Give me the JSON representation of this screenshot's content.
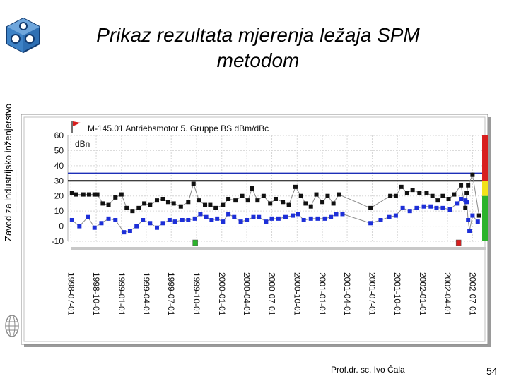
{
  "slide": {
    "title_line1": "Prikaz rezultata mjerenja ležaja SPM",
    "title_line2": "metodom",
    "side_text": "Zavod za industrijsko inženjerstvo",
    "author": "Prof.dr. sc. Ivo Čala",
    "page_number": "54"
  },
  "chart_data": {
    "type": "line",
    "title": "M-145.01 Antriebsmotor 5. Gruppe BS dBm/dBc",
    "ylabel": "dBn",
    "ylim": [
      -10,
      60
    ],
    "yticks": [
      -10,
      0,
      10,
      20,
      30,
      40,
      50,
      60
    ],
    "grid": true,
    "x_tick_labels": [
      "1998-07-01",
      "1998-10-01",
      "1999-01-01",
      "1999-04-01",
      "1999-07-01",
      "1999-10-01",
      "2000-01-01",
      "2000-04-01",
      "2000-07-01",
      "2000-10-01",
      "2001-01-01",
      "2001-04-01",
      "2001-07-01",
      "2001-10-01",
      "2002-01-01",
      "2002-04-01",
      "2002-07-01"
    ],
    "reference_lines": [
      {
        "value": 35,
        "color": "#1d2fb8"
      },
      {
        "value": 30,
        "color": "#000000"
      }
    ],
    "status_bands": [
      {
        "from": 30,
        "to": 60,
        "color": "#d81e1e"
      },
      {
        "from": 20,
        "to": 30,
        "color": "#f2e21a"
      },
      {
        "from": -10,
        "to": 20,
        "color": "#2bb32b"
      }
    ],
    "series": [
      {
        "color": "#111111",
        "points": [
          [
            "1998-07-05",
            22
          ],
          [
            "1998-07-20",
            21
          ],
          [
            "1998-08-15",
            21
          ],
          [
            "1998-09-05",
            21
          ],
          [
            "1998-09-25",
            21
          ],
          [
            "1998-10-05",
            21
          ],
          [
            "1998-10-25",
            15
          ],
          [
            "1998-11-15",
            14
          ],
          [
            "1998-12-10",
            19
          ],
          [
            "1999-01-01",
            21
          ],
          [
            "1999-01-20",
            12
          ],
          [
            "1999-02-10",
            10
          ],
          [
            "1999-03-05",
            12
          ],
          [
            "1999-03-25",
            15
          ],
          [
            "1999-04-15",
            14
          ],
          [
            "1999-05-10",
            17
          ],
          [
            "1999-06-01",
            18
          ],
          [
            "1999-06-20",
            16
          ],
          [
            "1999-07-10",
            15
          ],
          [
            "1999-08-05",
            13
          ],
          [
            "1999-09-01",
            16
          ],
          [
            "1999-09-20",
            28
          ],
          [
            "1999-10-10",
            17
          ],
          [
            "1999-11-01",
            14
          ],
          [
            "1999-11-20",
            14
          ],
          [
            "1999-12-10",
            12
          ],
          [
            "2000-01-05",
            14
          ],
          [
            "2000-01-25",
            18
          ],
          [
            "2000-02-20",
            17
          ],
          [
            "2000-03-15",
            20
          ],
          [
            "2000-04-05",
            17
          ],
          [
            "2000-04-20",
            25
          ],
          [
            "2000-05-10",
            17
          ],
          [
            "2000-06-01",
            20
          ],
          [
            "2000-06-25",
            15
          ],
          [
            "2000-07-15",
            18
          ],
          [
            "2000-08-10",
            16
          ],
          [
            "2000-09-01",
            14
          ],
          [
            "2000-09-25",
            26
          ],
          [
            "2000-10-15",
            20
          ],
          [
            "2000-11-01",
            15
          ],
          [
            "2000-11-20",
            13
          ],
          [
            "2000-12-10",
            21
          ],
          [
            "2001-01-01",
            16
          ],
          [
            "2001-01-20",
            20
          ],
          [
            "2001-02-10",
            15
          ],
          [
            "2001-03-01",
            21
          ],
          [
            "2001-06-25",
            12
          ],
          [
            "2001-09-05",
            20
          ],
          [
            "2001-09-25",
            20
          ],
          [
            "2001-10-15",
            26
          ],
          [
            "2001-11-05",
            22
          ],
          [
            "2001-11-25",
            24
          ],
          [
            "2001-12-20",
            22
          ],
          [
            "2002-01-15",
            22
          ],
          [
            "2002-02-05",
            20
          ],
          [
            "2002-02-25",
            17
          ],
          [
            "2002-03-15",
            20
          ],
          [
            "2002-04-05",
            18
          ],
          [
            "2002-04-25",
            21
          ],
          [
            "2002-05-20",
            27
          ],
          [
            "2002-06-05",
            12
          ],
          [
            "2002-06-10",
            22
          ],
          [
            "2002-06-15",
            27
          ],
          [
            "2002-07-01",
            34
          ],
          [
            "2002-07-25",
            7
          ]
        ]
      },
      {
        "color": "#1d2fd8",
        "points": [
          [
            "1998-07-05",
            4
          ],
          [
            "1998-08-01",
            0
          ],
          [
            "1998-09-01",
            6
          ],
          [
            "1998-09-25",
            -1
          ],
          [
            "1998-10-20",
            2
          ],
          [
            "1998-11-15",
            5
          ],
          [
            "1998-12-10",
            4
          ],
          [
            "1999-01-10",
            -4
          ],
          [
            "1999-02-01",
            -3
          ],
          [
            "1999-02-25",
            0
          ],
          [
            "1999-03-20",
            4
          ],
          [
            "1999-04-15",
            2
          ],
          [
            "1999-05-10",
            -1
          ],
          [
            "1999-06-01",
            2
          ],
          [
            "1999-06-25",
            4
          ],
          [
            "1999-07-15",
            3
          ],
          [
            "1999-08-10",
            4
          ],
          [
            "1999-09-01",
            4
          ],
          [
            "1999-09-25",
            5
          ],
          [
            "1999-10-15",
            8
          ],
          [
            "1999-11-05",
            6
          ],
          [
            "1999-11-25",
            4
          ],
          [
            "1999-12-15",
            5
          ],
          [
            "2000-01-05",
            3
          ],
          [
            "2000-01-25",
            8
          ],
          [
            "2000-02-15",
            6
          ],
          [
            "2000-03-10",
            3
          ],
          [
            "2000-04-01",
            4
          ],
          [
            "2000-04-25",
            6
          ],
          [
            "2000-05-15",
            6
          ],
          [
            "2000-06-10",
            3
          ],
          [
            "2000-07-01",
            5
          ],
          [
            "2000-07-25",
            5
          ],
          [
            "2000-08-20",
            6
          ],
          [
            "2000-09-15",
            7
          ],
          [
            "2000-10-05",
            8
          ],
          [
            "2000-10-25",
            4
          ],
          [
            "2000-11-20",
            5
          ],
          [
            "2000-12-15",
            5
          ],
          [
            "2001-01-10",
            5
          ],
          [
            "2001-02-01",
            6
          ],
          [
            "2001-02-20",
            8
          ],
          [
            "2001-03-15",
            8
          ],
          [
            "2001-06-25",
            2
          ],
          [
            "2001-08-01",
            4
          ],
          [
            "2001-09-01",
            6
          ],
          [
            "2001-09-25",
            7
          ],
          [
            "2001-10-20",
            12
          ],
          [
            "2001-11-15",
            10
          ],
          [
            "2001-12-10",
            12
          ],
          [
            "2002-01-05",
            13
          ],
          [
            "2002-01-30",
            13
          ],
          [
            "2002-02-20",
            12
          ],
          [
            "2002-03-15",
            12
          ],
          [
            "2002-04-10",
            11
          ],
          [
            "2002-05-05",
            15
          ],
          [
            "2002-05-20",
            18
          ],
          [
            "2002-06-05",
            17
          ],
          [
            "2002-06-10",
            16
          ],
          [
            "2002-06-15",
            4
          ],
          [
            "2002-06-20",
            -3
          ],
          [
            "2002-07-01",
            7
          ],
          [
            "2002-07-20",
            3
          ]
        ]
      }
    ],
    "markers": [
      {
        "date": "1999-09-25",
        "color": "#2bb32b"
      },
      {
        "date": "2002-05-10",
        "color": "#d81e1e"
      }
    ]
  }
}
